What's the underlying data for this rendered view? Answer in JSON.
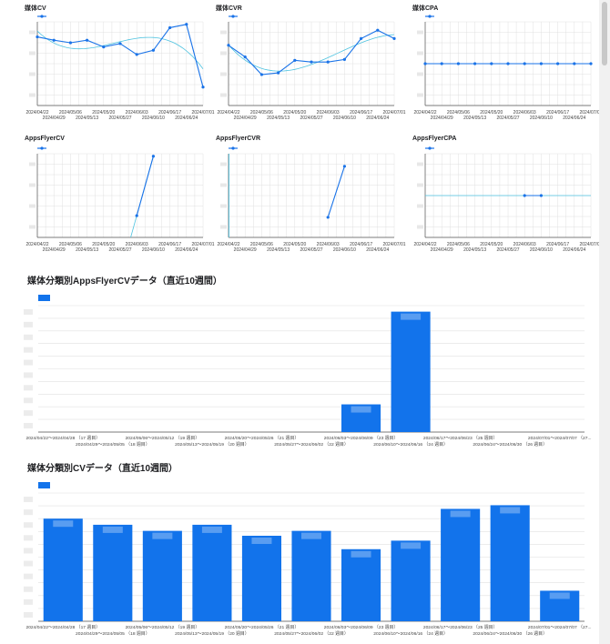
{
  "colors": {
    "primary": "#1a73e8",
    "trend": "#4ec3e0",
    "bar": "#1273eb",
    "grid": "#e0e0e0",
    "axis": "#9e9e9e"
  },
  "small_x_labels": [
    "2024/04/22",
    "2024/04/29",
    "2024/05/06",
    "2024/05/13",
    "2024/05/20",
    "2024/05/27",
    "2024/06/03",
    "2024/06/10",
    "2024/06/17",
    "2024/06/24",
    "2024/07/01"
  ],
  "big_x_labels": [
    "2024/04/22～2024/04/28 （17 週目）",
    "2024/04/29～2024/05/05 （18 週目）",
    "2024/05/06～2024/05/12 （19 週目）",
    "2024/05/13～2024/05/19 （20 週目）",
    "2024/05/20～2024/05/26 （21 週目）",
    "2024/05/27～2024/06/02 （22 週目）",
    "2024/06/03～2024/06/09 （23 週目）",
    "2024/06/10～2024/06/16 （24 週目）",
    "2024/06/17～2024/06/23 （25 週目）",
    "2024/06/24～2024/06/30 （26 週目）",
    "2024/07/01～2024/07/07 （27..."
  ],
  "small_x_labels_full": [
    "2024/04/22",
    "2024/04/29",
    "2024/05/06",
    "2024/05/13",
    "2024/05/20",
    "2024/05/27",
    "2024/06/03",
    "2024/06/10",
    "2024/06/17",
    "2024/06/24",
    "2024/07/01"
  ],
  "big_x_labels_full": [
    "2024/04/22～2024/04/28 （17 週目）",
    "2024/04/29～2024/05/05 （18 週目）",
    "2024/05/06～2024/05/12 （19 週目）",
    "2024/05/13～2024/05/19 （20 週目）",
    "2024/05/20～2024/05/26 （21 週目）",
    "2024/05/27～2024/06/02 （22 週目）",
    "2024/06/03～2024/06/09 （23 週目）",
    "2024/06/10～2024/06/16 （24 週目）",
    "2024/06/17～2024/06/23 （25 週目）",
    "2024/06/24～2024/06/30 （26 週目）",
    "2024/07/01～2024/07/07 （27 週目）"
  ],
  "chart_data": [
    {
      "type": "line",
      "title": "媒体CV",
      "x": [
        "2024/04/22",
        "2024/04/29",
        "2024/05/06",
        "2024/05/13",
        "2024/05/20",
        "2024/05/27",
        "2024/06/03",
        "2024/06/10",
        "2024/06/17",
        "2024/06/24",
        "2024/07/01"
      ],
      "series": [
        {
          "name": "",
          "values": [
            0.82,
            0.78,
            0.75,
            0.78,
            0.7,
            0.74,
            0.61,
            0.66,
            0.93,
            0.97,
            0.22
          ]
        }
      ],
      "trendline": "polynomial",
      "ylim": [
        0,
        1
      ]
    },
    {
      "type": "line",
      "title": "媒体CVR",
      "x": [
        "2024/04/22",
        "2024/04/29",
        "2024/05/06",
        "2024/05/13",
        "2024/05/20",
        "2024/05/27",
        "2024/06/03",
        "2024/06/10",
        "2024/06/17",
        "2024/06/24",
        "2024/07/01"
      ],
      "series": [
        {
          "name": "",
          "values": [
            0.72,
            0.58,
            0.37,
            0.39,
            0.54,
            0.52,
            0.52,
            0.55,
            0.8,
            0.9,
            0.8
          ]
        }
      ],
      "trendline": "polynomial",
      "ylim": [
        0,
        1
      ]
    },
    {
      "type": "line",
      "title": "媒体CPA",
      "x": [
        "2024/04/22",
        "2024/04/29",
        "2024/05/06",
        "2024/05/13",
        "2024/05/20",
        "2024/05/27",
        "2024/06/03",
        "2024/06/10",
        "2024/06/17",
        "2024/06/24",
        "2024/07/01"
      ],
      "series": [
        {
          "name": "",
          "values": [
            0.5,
            0.5,
            0.5,
            0.5,
            0.5,
            0.5,
            0.5,
            0.5,
            0.5,
            0.5,
            0.5
          ]
        }
      ],
      "trendline": "linear",
      "ylim": [
        0,
        1
      ]
    },
    {
      "type": "line",
      "title": "AppsFlyerCV",
      "x": [
        "2024/04/22",
        "2024/04/29",
        "2024/05/06",
        "2024/05/13",
        "2024/05/20",
        "2024/05/27",
        "2024/06/03",
        "2024/06/10",
        "2024/06/17",
        "2024/06/24",
        "2024/07/01"
      ],
      "series": [
        {
          "name": "",
          "values": [
            null,
            null,
            null,
            null,
            null,
            null,
            0.26,
            0.97,
            null,
            null,
            null
          ]
        }
      ],
      "trendline": "linear-partial",
      "ylim": [
        0,
        1
      ]
    },
    {
      "type": "line",
      "title": "AppsFlyerCVR",
      "x": [
        "2024/04/22",
        "2024/04/29",
        "2024/05/06",
        "2024/05/13",
        "2024/05/20",
        "2024/05/27",
        "2024/06/03",
        "2024/06/10",
        "2024/06/17",
        "2024/06/24",
        "2024/07/01"
      ],
      "series": [
        {
          "name": "",
          "values": [
            null,
            null,
            null,
            null,
            null,
            null,
            0.24,
            0.85,
            null,
            null,
            null
          ]
        }
      ],
      "trendline": "vertical-start",
      "ylim": [
        0,
        1
      ]
    },
    {
      "type": "line",
      "title": "AppsFlyerCPA",
      "x": [
        "2024/04/22",
        "2024/04/29",
        "2024/05/06",
        "2024/05/13",
        "2024/05/20",
        "2024/05/27",
        "2024/06/03",
        "2024/06/10",
        "2024/06/17",
        "2024/06/24",
        "2024/07/01"
      ],
      "series": [
        {
          "name": "",
          "values": [
            null,
            null,
            null,
            null,
            null,
            null,
            0.5,
            0.5,
            null,
            null,
            null
          ]
        }
      ],
      "trendline": "linear",
      "ylim": [
        0,
        1
      ]
    },
    {
      "type": "bar",
      "title": "媒体分類別AppsFlyerCVデータ（直近10週間）",
      "categories": [
        "2024/04/22～2024/04/28 （17 週目）",
        "2024/04/29～2024/05/05 （18 週目）",
        "2024/05/06～2024/05/12 （19 週目）",
        "2024/05/13～2024/05/19 （20 週目）",
        "2024/05/20～2024/05/26 （21 週目）",
        "2024/05/27～2024/06/02 （22 週目）",
        "2024/06/03～2024/06/09 （23 週目）",
        "2024/06/10～2024/06/16 （24 週目）",
        "2024/06/17～2024/06/23 （25 週目）",
        "2024/06/24～2024/06/30 （26 週目）",
        "2024/07/01～2024/07/07 （27..."
      ],
      "series": [
        {
          "name": "",
          "values": [
            0,
            0,
            0,
            0,
            0,
            0,
            0.23,
            1.0,
            0,
            0,
            0
          ]
        }
      ],
      "ylim": [
        0,
        1.05
      ]
    },
    {
      "type": "bar",
      "title": "媒体分類別CVデータ（直近10週間）",
      "categories": [
        "2024/04/22～2024/04/28 （17 週目）",
        "2024/04/29～2024/05/05 （18 週目）",
        "2024/05/06～2024/05/12 （19 週目）",
        "2024/05/13～2024/05/19 （20 週目）",
        "2024/05/20～2024/05/26 （21 週目）",
        "2024/05/27～2024/06/02 （22 週目）",
        "2024/06/03～2024/06/09 （23 週目）",
        "2024/06/10～2024/06/16 （24 週目）",
        "2024/06/17～2024/06/23 （25 週目）",
        "2024/06/24～2024/06/30 （26 週目）",
        "2024/07/01～2024/07/07 （27..."
      ],
      "series": [
        {
          "name": "",
          "values": [
            0.84,
            0.79,
            0.74,
            0.79,
            0.7,
            0.74,
            0.59,
            0.66,
            0.92,
            0.95,
            0.25
          ]
        }
      ],
      "ylim": [
        0,
        1.05
      ]
    }
  ]
}
